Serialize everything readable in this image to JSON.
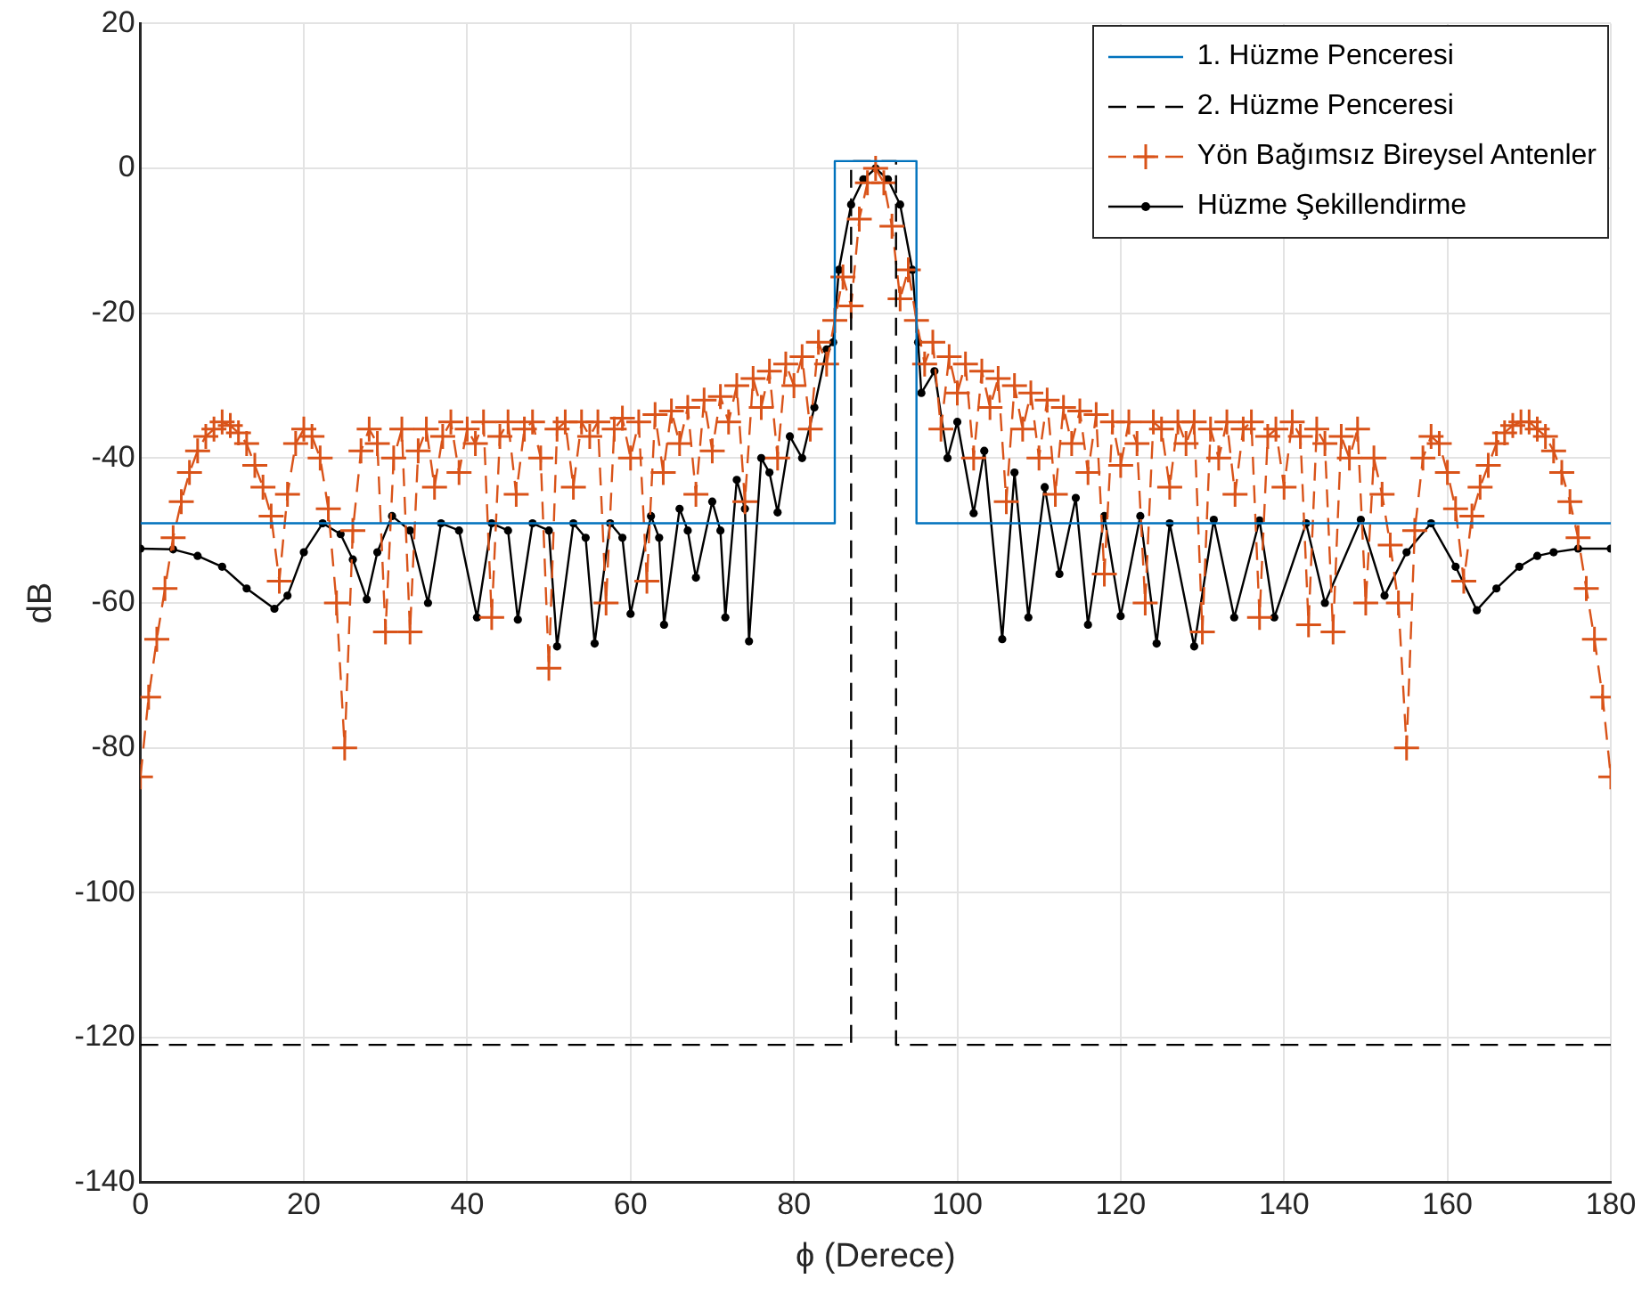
{
  "chart_data": {
    "type": "line",
    "xlabel": "ϕ (Derece)",
    "ylabel": "dB",
    "xlim": [
      0,
      180
    ],
    "xticks": [
      0,
      20,
      40,
      60,
      80,
      100,
      120,
      140,
      160,
      180
    ],
    "ylim": [
      -140,
      20
    ],
    "yticks": [
      -140,
      -120,
      -100,
      -80,
      -60,
      -40,
      -20,
      0,
      20
    ],
    "grid": true,
    "legend": "top right",
    "series": [
      {
        "name": "1. Hüzme Penceresi",
        "color": "#0072bd",
        "line_style": "solid",
        "marker": "none",
        "x": [
          0,
          85,
          85,
          95,
          95,
          180
        ],
        "values": [
          -49,
          -49,
          1,
          1,
          -49,
          -49
        ]
      },
      {
        "name": "2. Hüzme Penceresi",
        "color": "#000000",
        "line_style": "dashed",
        "marker": "none",
        "x": [
          0,
          87,
          87,
          92.5,
          92.5,
          180
        ],
        "values": [
          -121,
          -121,
          1,
          1,
          -121,
          -121
        ]
      },
      {
        "name": "Yön Bağımsız Bireysel Antenler",
        "color": "#d95319",
        "line_style": "dashed",
        "marker": "cross",
        "x": [
          0,
          1,
          2,
          3,
          4,
          5,
          6,
          7,
          8,
          9,
          10,
          11,
          12,
          13,
          14,
          15,
          16,
          17,
          18,
          19,
          20,
          21,
          22,
          23,
          24,
          25,
          26,
          27,
          28,
          29,
          30,
          31,
          32,
          33,
          34,
          35,
          36,
          37,
          38,
          39,
          40,
          41,
          42,
          43,
          44,
          45,
          46,
          47,
          48,
          49,
          50,
          51,
          52,
          53,
          54,
          55,
          56,
          57,
          58,
          59,
          60,
          61,
          62,
          63,
          64,
          65,
          66,
          67,
          68,
          69,
          70,
          71,
          72,
          73,
          74,
          75,
          76,
          77,
          78,
          79,
          80,
          81,
          82,
          83,
          84,
          85,
          86,
          87,
          88,
          89,
          90,
          91,
          92,
          93,
          94,
          95,
          96,
          97,
          98,
          99,
          100,
          101,
          102,
          103,
          104,
          105,
          106,
          107,
          108,
          109,
          110,
          111,
          112,
          113,
          114,
          115,
          116,
          117,
          118,
          119,
          120,
          121,
          122,
          123,
          124,
          125,
          126,
          127,
          128,
          129,
          130,
          131,
          132,
          133,
          134,
          135,
          136,
          137,
          138,
          139,
          140,
          141,
          142,
          143,
          144,
          145,
          146,
          147,
          148,
          149,
          150,
          151,
          152,
          153,
          154,
          155,
          156,
          157,
          158,
          159,
          160,
          161,
          162,
          163,
          164,
          165,
          166,
          167,
          168,
          169,
          170,
          171,
          172,
          173,
          174,
          175,
          176,
          177,
          178,
          179,
          180
        ],
        "values": [
          -84,
          -73,
          -65,
          -58,
          -51,
          -46,
          -42,
          -39,
          -37,
          -36,
          -35,
          -35.5,
          -36.5,
          -38,
          -41,
          -44,
          -48,
          -57,
          -45,
          -38,
          -36,
          -37,
          -40,
          -47,
          -60,
          -80,
          -50,
          -39,
          -36,
          -38,
          -64,
          -40,
          -36,
          -64,
          -39,
          -36,
          -44,
          -37,
          -35,
          -42,
          -36,
          -38,
          -35,
          -62,
          -37,
          -35,
          -45,
          -36,
          -35,
          -40,
          -69,
          -36,
          -35,
          -44,
          -35,
          -37,
          -35,
          -60,
          -36,
          -34.5,
          -40,
          -35,
          -57,
          -34,
          -42,
          -33.5,
          -38,
          -33,
          -45,
          -32,
          -39,
          -31.5,
          -35,
          -30,
          -46,
          -29,
          -33,
          -28,
          -40,
          -27,
          -30,
          -26,
          -36,
          -24,
          -27,
          -21,
          -15,
          -19,
          -7,
          -2,
          0,
          -2,
          -8,
          -18,
          -14,
          -21,
          -27,
          -24,
          -36,
          -26,
          -31,
          -27,
          -40,
          -28,
          -33,
          -29,
          -46,
          -30,
          -36,
          -31,
          -40,
          -32,
          -45,
          -33,
          -38,
          -33.5,
          -42,
          -34,
          -56,
          -35,
          -41,
          -35,
          -38,
          -60,
          -35,
          -36,
          -44,
          -35,
          -38,
          -35,
          -64,
          -36,
          -40,
          -35,
          -45,
          -36,
          -35,
          -62,
          -37,
          -36,
          -44,
          -35,
          -37,
          -63,
          -36,
          -38,
          -64,
          -37,
          -40,
          -36,
          -60,
          -40,
          -45,
          -52,
          -60,
          -80,
          -50,
          -40,
          -37,
          -38,
          -42,
          -47,
          -57,
          -48,
          -44,
          -41,
          -38,
          -36.5,
          -35.5,
          -35,
          -35,
          -36,
          -37,
          -39,
          -42,
          -46,
          -51,
          -58,
          -65,
          -73,
          -84
        ]
      },
      {
        "name": "Hüzme Şekillendirme",
        "color": "#000000",
        "line_style": "solid",
        "marker": "circle",
        "x": [
          0,
          4,
          7,
          10,
          13,
          16.4,
          18,
          20,
          22.3,
          24.5,
          26,
          27.7,
          29,
          30.8,
          33,
          35.2,
          36.8,
          39,
          41.2,
          43,
          45,
          46.2,
          48,
          50,
          51,
          53,
          54.5,
          55.6,
          57.5,
          59,
          60,
          62.5,
          63.5,
          64.1,
          66,
          67,
          68,
          70,
          71,
          71.6,
          73,
          74,
          74.5,
          76,
          77,
          78,
          79.5,
          81,
          82.5,
          84,
          84.8,
          85.5,
          87,
          88.5,
          90,
          91.5,
          93,
          94.5,
          95.2,
          95.6,
          97.2,
          98.8,
          100,
          102,
          103.3,
          105.5,
          107,
          108.7,
          110.7,
          112.5,
          114.5,
          116,
          118,
          120,
          122.4,
          124.4,
          126,
          129,
          131.4,
          133.9,
          137,
          138.8,
          142.7,
          145,
          149.4,
          152.3,
          155,
          158,
          161,
          163.6,
          166,
          168.8,
          171,
          173,
          176,
          180
        ],
        "values": [
          -52.5,
          -52.6,
          -53.5,
          -55,
          -58,
          -60.8,
          -59,
          -53,
          -49,
          -50.5,
          -54,
          -59.5,
          -53,
          -48,
          -50,
          -60,
          -49,
          -50,
          -62,
          -49,
          -50,
          -62.3,
          -49,
          -50,
          -66,
          -49,
          -51,
          -65.6,
          -49,
          -51,
          -61.5,
          -48,
          -51,
          -63,
          -47,
          -50,
          -56.5,
          -46,
          -50,
          -62,
          -43,
          -47,
          -65.3,
          -40,
          -42,
          -47.5,
          -37,
          -40,
          -33,
          -25,
          -24,
          -14,
          -5,
          -1.5,
          0,
          -1.5,
          -5,
          -14,
          -24,
          -31,
          -28,
          -40,
          -35,
          -47.6,
          -39,
          -65,
          -42,
          -62,
          -44,
          -56,
          -45.5,
          -63,
          -48,
          -61.8,
          -48,
          -65.6,
          -49,
          -66,
          -48.5,
          -62,
          -48.6,
          -62,
          -49,
          -60,
          -48.5,
          -59,
          -53,
          -49,
          -55,
          -61,
          -58,
          -55,
          -53.5,
          -53,
          -52.5,
          -52.5
        ]
      }
    ]
  }
}
